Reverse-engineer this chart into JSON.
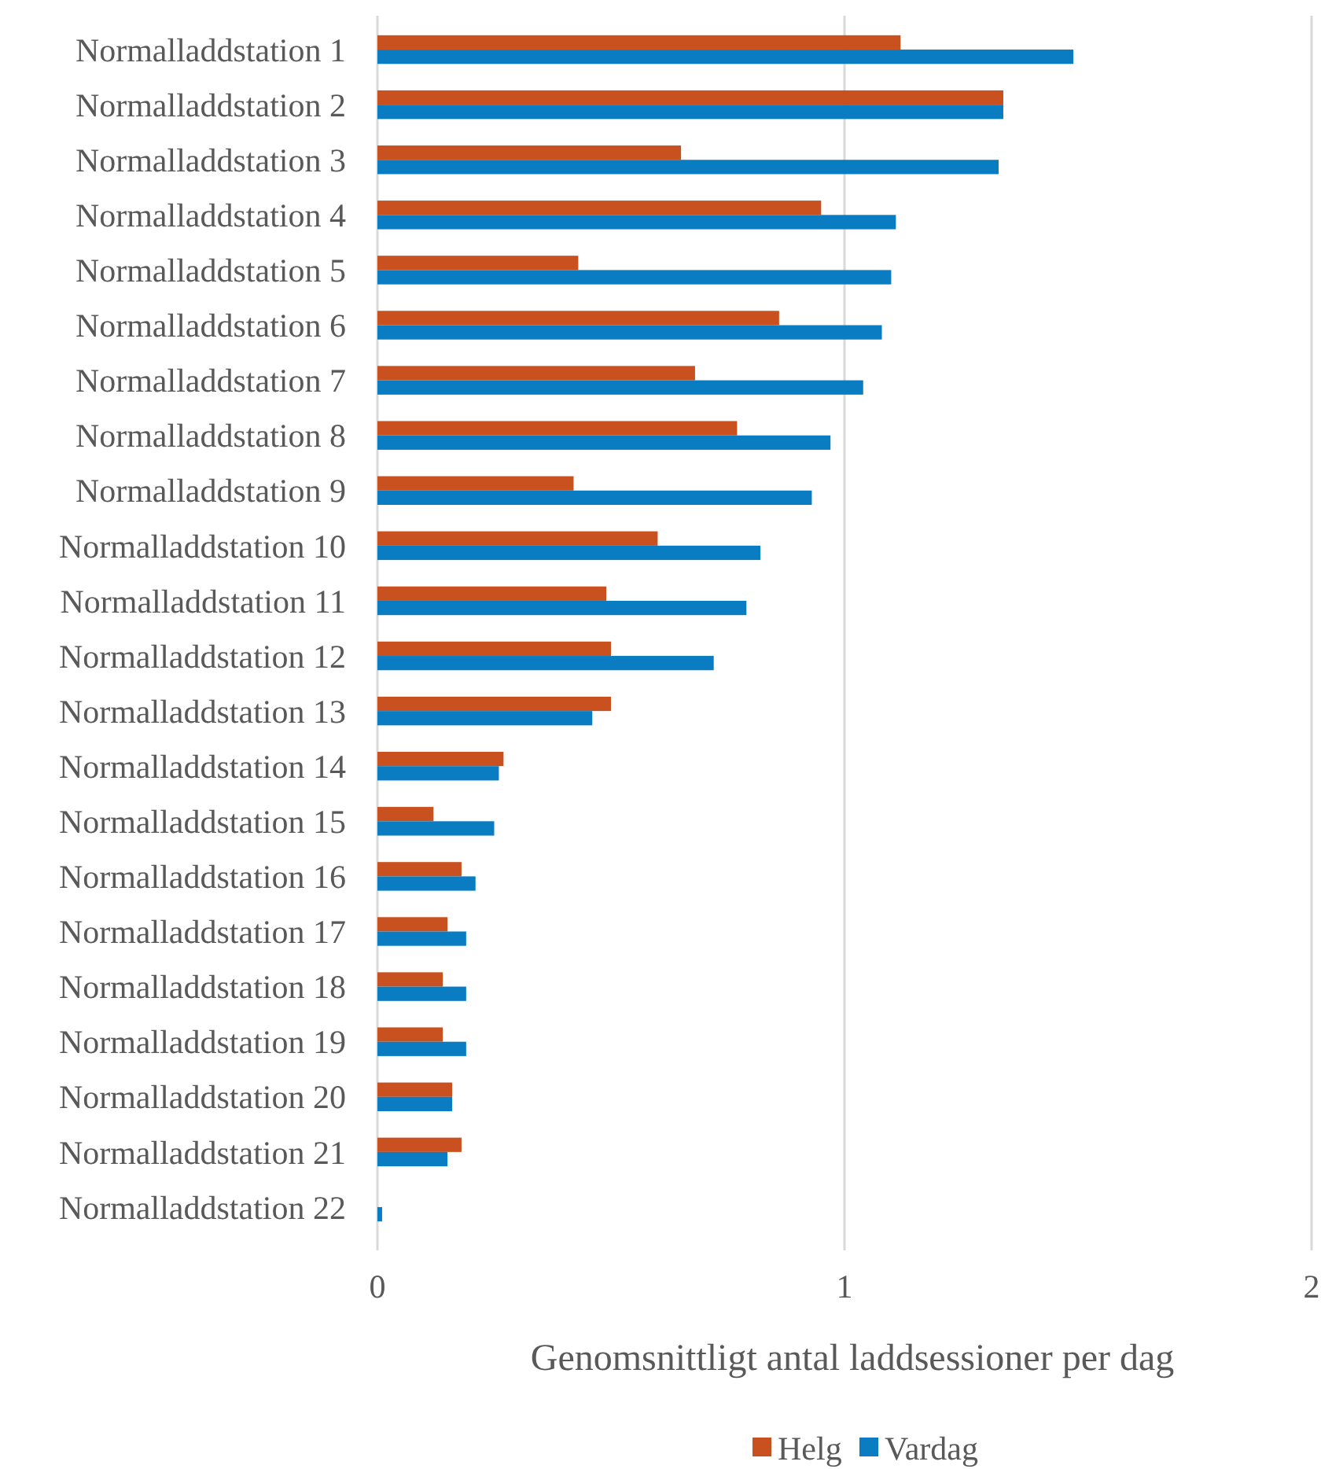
{
  "chart_data": {
    "type": "bar",
    "orientation": "horizontal",
    "xlabel": "Genomsnittligt antal laddsessioner per dag",
    "categories": [
      "Normalladdstation 1",
      "Normalladdstation 2",
      "Normalladdstation 3",
      "Normalladdstation 4",
      "Normalladdstation 5",
      "Normalladdstation 6",
      "Normalladdstation 7",
      "Normalladdstation 8",
      "Normalladdstation 9",
      "Normalladdstation 10",
      "Normalladdstation 11",
      "Normalladdstation 12",
      "Normalladdstation 13",
      "Normalladdstation 14",
      "Normalladdstation 15",
      "Normalladdstation 16",
      "Normalladdstation 17",
      "Normalladdstation 18",
      "Normalladdstation 19",
      "Normalladdstation 20",
      "Normalladdstation 21",
      "Normalladdstation 22"
    ],
    "series": [
      {
        "name": "Helg",
        "color": "#c9511f",
        "values": [
          1.12,
          1.34,
          0.65,
          0.95,
          0.43,
          0.86,
          0.68,
          0.77,
          0.42,
          0.6,
          0.49,
          0.5,
          0.5,
          0.27,
          0.12,
          0.18,
          0.15,
          0.14,
          0.14,
          0.16,
          0.18,
          0.0
        ]
      },
      {
        "name": "Vardag",
        "color": "#0a7cc1",
        "values": [
          1.49,
          1.34,
          1.33,
          1.11,
          1.1,
          1.08,
          1.04,
          0.97,
          0.93,
          0.82,
          0.79,
          0.72,
          0.46,
          0.26,
          0.25,
          0.21,
          0.19,
          0.19,
          0.19,
          0.16,
          0.15,
          0.01
        ]
      }
    ],
    "xlim": [
      0,
      2
    ],
    "xticks": [
      0,
      1,
      2
    ],
    "grid": "x",
    "legend": "bottom"
  }
}
